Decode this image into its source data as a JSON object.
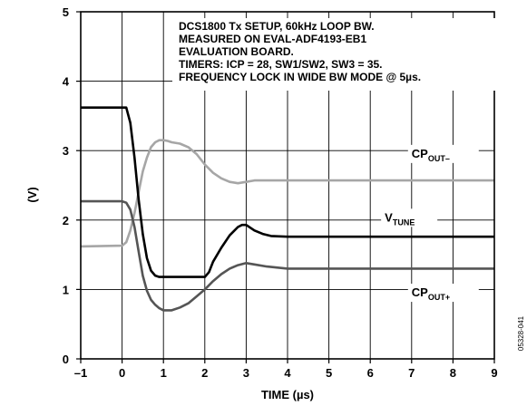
{
  "chart_data": {
    "type": "line",
    "xlabel": "TIME (µs)",
    "ylabel": "(V)",
    "xlim": [
      -1,
      9
    ],
    "ylim": [
      0,
      5
    ],
    "x_ticks": [
      "–1",
      "0",
      "1",
      "2",
      "3",
      "4",
      "5",
      "6",
      "7",
      "8",
      "9"
    ],
    "y_ticks": [
      "0",
      "1",
      "2",
      "3",
      "4",
      "5"
    ],
    "grid": true,
    "annotation": [
      "DCS1800 Tx SETUP, 60kHz LOOP BW.",
      "MEASURED ON EVAL-ADF4193-EB1",
      "EVALUATION BOARD.",
      "TIMERS: ICP = 28, SW1/SW2, SW3 = 35.",
      "FREQUENCY LOCK IN WIDE BW MODE @ 5µs."
    ],
    "figure_id": "05328-041",
    "series": [
      {
        "label_main": "CP",
        "label_sub": "OUT–",
        "color": "#a6a6a6",
        "x": [
          -1,
          0,
          0.1,
          0.2,
          0.3,
          0.4,
          0.5,
          0.6,
          0.7,
          0.8,
          0.9,
          1.0,
          1.1,
          1.2,
          1.4,
          1.6,
          1.8,
          2.0,
          2.2,
          2.4,
          2.6,
          2.8,
          3.0,
          3.2,
          3.5,
          4,
          5,
          6,
          7,
          8,
          9
        ],
        "y": [
          1.62,
          1.63,
          1.68,
          1.85,
          2.1,
          2.4,
          2.7,
          2.9,
          3.05,
          3.12,
          3.15,
          3.15,
          3.14,
          3.12,
          3.1,
          3.05,
          2.95,
          2.8,
          2.68,
          2.6,
          2.55,
          2.53,
          2.55,
          2.57,
          2.57,
          2.57,
          2.57,
          2.57,
          2.57,
          2.57,
          2.57
        ]
      },
      {
        "label_main": "V",
        "label_sub": "TUNE",
        "color": "#000000",
        "x": [
          -1,
          0.1,
          0.2,
          0.3,
          0.4,
          0.5,
          0.6,
          0.7,
          0.8,
          0.9,
          1.0,
          1.5,
          2.0,
          2.1,
          2.2,
          2.4,
          2.6,
          2.8,
          2.9,
          3.0,
          3.2,
          3.4,
          3.6,
          4,
          5,
          6,
          7,
          8,
          9
        ],
        "y": [
          3.62,
          3.62,
          3.4,
          2.9,
          2.3,
          1.8,
          1.45,
          1.27,
          1.2,
          1.18,
          1.18,
          1.18,
          1.18,
          1.25,
          1.4,
          1.6,
          1.78,
          1.9,
          1.93,
          1.93,
          1.85,
          1.8,
          1.77,
          1.76,
          1.76,
          1.76,
          1.76,
          1.76,
          1.76
        ]
      },
      {
        "label_main": "CP",
        "label_sub": "OUT+",
        "color": "#555555",
        "x": [
          -1,
          0,
          0.1,
          0.2,
          0.3,
          0.4,
          0.5,
          0.6,
          0.7,
          0.8,
          0.9,
          1.0,
          1.2,
          1.4,
          1.6,
          1.8,
          2.0,
          2.2,
          2.4,
          2.6,
          2.8,
          3.0,
          3.2,
          3.5,
          4,
          5,
          6,
          7,
          8,
          9
        ],
        "y": [
          2.27,
          2.27,
          2.25,
          2.15,
          1.9,
          1.55,
          1.2,
          0.98,
          0.85,
          0.78,
          0.73,
          0.7,
          0.7,
          0.74,
          0.8,
          0.9,
          1.0,
          1.12,
          1.22,
          1.3,
          1.35,
          1.38,
          1.36,
          1.33,
          1.3,
          1.3,
          1.3,
          1.3,
          1.3,
          1.3
        ]
      }
    ]
  }
}
